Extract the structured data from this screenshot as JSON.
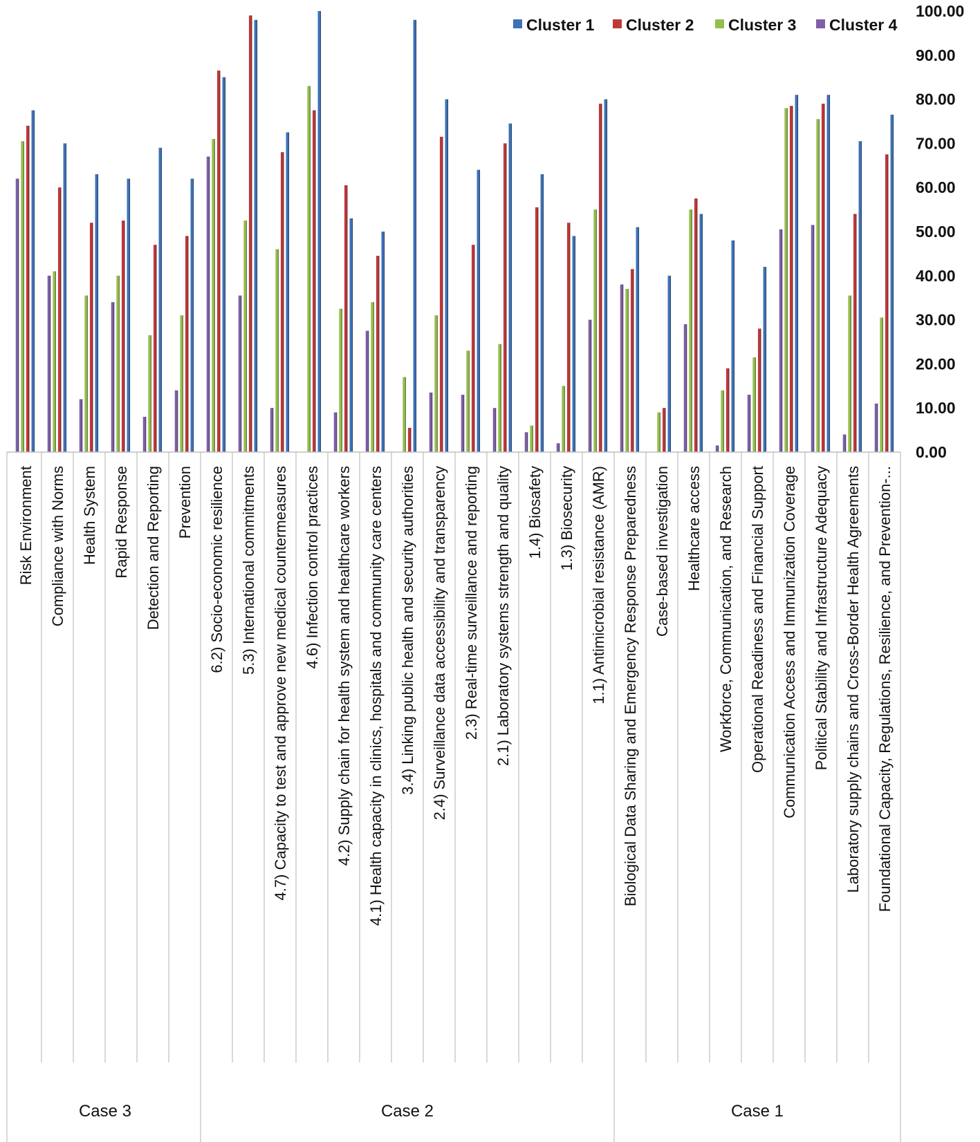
{
  "chart_data": {
    "type": "bar",
    "ylim": [
      0,
      100
    ],
    "yticks": [
      "0.00",
      "10.00",
      "20.00",
      "30.00",
      "40.00",
      "50.00",
      "60.00",
      "70.00",
      "80.00",
      "90.00",
      "100.00"
    ],
    "categories": [
      "Risk Environment",
      "Compliance with Norms",
      "Health System",
      "Rapid Response",
      "Detection and Reporting",
      "Prevention",
      "6.2) Socio-economic resilience",
      "5.3) International commitments",
      "4.7) Capacity to test and approve new medical countermeasures",
      "4.6) Infection control practices",
      "4.2) Supply chain for health system and healthcare workers",
      "4.1) Health capacity in clinics, hospitals and community care centers",
      "3.4) Linking public health and security authorities",
      "2.4) Surveillance data accessibility and transparency",
      "2.3) Real-time surveillance and reporting",
      "2.1) Laboratory systems strength and quality",
      "1.4) Biosafety",
      "1.3) Biosecurity",
      "1.1) Antimicrobial resistance (AMR)",
      "Biological Data Sharing and Emergency Response Preparedness",
      "Case-based investigation",
      "Healthcare access",
      "Workforce, Communication, and Research",
      "Operational Readiness and Financial Support",
      "Communication Access and Immunization Coverage",
      "Political Stability and Infrastructure Adequacy",
      "Laboratory supply chains and Cross-Border Health Agreements",
      "Foundational Capacity, Regulations, Resilience, and Prevention-..."
    ],
    "groups": [
      {
        "label": "Case 3",
        "start": 0,
        "end": 5
      },
      {
        "label": "Case 2",
        "start": 6,
        "end": 18
      },
      {
        "label": "Case 1",
        "start": 19,
        "end": 27
      }
    ],
    "series": [
      {
        "name": "Cluster 4",
        "color": "#7f5fa8",
        "values": [
          62,
          40,
          12,
          34,
          8,
          14,
          67,
          35.5,
          10,
          0,
          9,
          27.5,
          0,
          13.5,
          13,
          10,
          4.5,
          2,
          30,
          38,
          0,
          29,
          1.5,
          13,
          50.5,
          51.5,
          4,
          11
        ]
      },
      {
        "name": "Cluster 3",
        "color": "#95bf4d",
        "values": [
          70.5,
          41,
          35.5,
          40,
          26.5,
          31,
          71,
          52.5,
          46,
          83,
          32.5,
          34,
          17,
          31,
          23,
          24.5,
          6,
          15,
          55,
          37,
          9,
          55,
          14,
          21.5,
          78,
          75.5,
          35.5,
          30.5
        ]
      },
      {
        "name": "Cluster 2",
        "color": "#c0383a",
        "values": [
          74,
          60,
          52,
          52.5,
          47,
          49,
          86.5,
          99,
          68,
          77.5,
          60.5,
          44.5,
          5.5,
          71.5,
          47,
          70,
          55.5,
          52,
          79,
          41.5,
          10,
          57.5,
          19,
          28,
          78.5,
          79,
          54,
          67.5
        ]
      },
      {
        "name": "Cluster 1",
        "color": "#3d72b8",
        "values": [
          77.5,
          70,
          63,
          62,
          69,
          62,
          85,
          98,
          72.5,
          100,
          53,
          50,
          98,
          80,
          64,
          74.5,
          63,
          49,
          80,
          51,
          40,
          54,
          48,
          42,
          81,
          81,
          70.5,
          76.5
        ]
      }
    ],
    "legend": {
      "position": "top-right",
      "order": [
        "Cluster 1",
        "Cluster 2",
        "Cluster 3",
        "Cluster 4"
      ]
    },
    "grid": false
  }
}
